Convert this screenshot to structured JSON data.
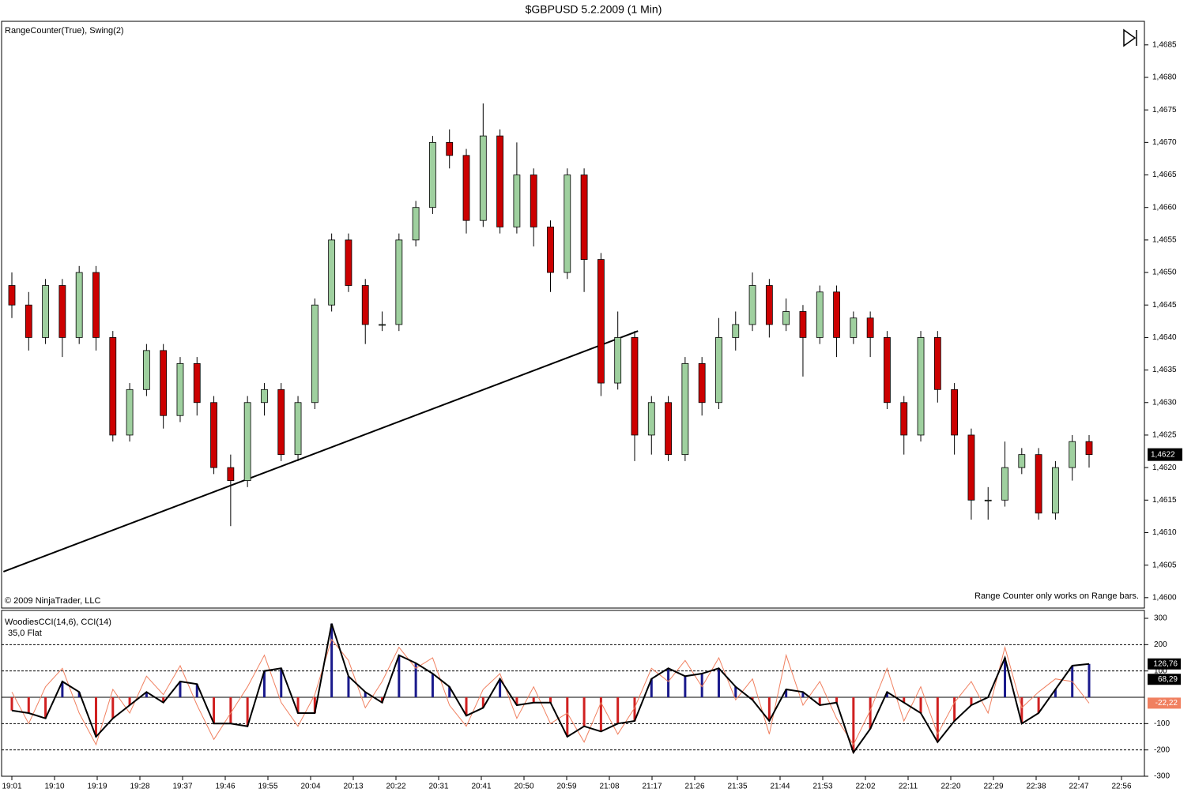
{
  "title": "$GBPUSD  5.2.2009 (1 Min)",
  "time_labels": [
    "19:01",
    "19:10",
    "19:19",
    "19:28",
    "19:37",
    "19:46",
    "19:55",
    "20:04",
    "20:13",
    "20:22",
    "20:31",
    "20:41",
    "20:50",
    "20:59",
    "21:08",
    "21:17",
    "21:26",
    "21:35",
    "21:44",
    "21:53",
    "22:02",
    "22:11",
    "22:20",
    "22:29",
    "22:38",
    "22:47",
    "22:56"
  ],
  "chart_data": [
    {
      "type": "candlestick",
      "title": "RangeCounter(True), Swing(2)",
      "copyright": "© 2009 NinjaTrader, LLC",
      "note": "Range Counter only works on Range bars.",
      "up_color": "#9fd09f",
      "down_color": "#cc0000",
      "ylim": [
        1.45984,
        1.46885
      ],
      "yticks": [
        {
          "value": 1.46,
          "label": "1,4600"
        },
        {
          "value": 1.4605,
          "label": "1,4605"
        },
        {
          "value": 1.461,
          "label": "1,4610"
        },
        {
          "value": 1.4615,
          "label": "1,4615"
        },
        {
          "value": 1.462,
          "label": "1,4620"
        },
        {
          "value": 1.4625,
          "label": "1,4625"
        },
        {
          "value": 1.463,
          "label": "1,4630"
        },
        {
          "value": 1.4635,
          "label": "1,4635"
        },
        {
          "value": 1.464,
          "label": "1,4640"
        },
        {
          "value": 1.4645,
          "label": "1,4645"
        },
        {
          "value": 1.465,
          "label": "1,4650"
        },
        {
          "value": 1.4655,
          "label": "1,4655"
        },
        {
          "value": 1.466,
          "label": "1,4660"
        },
        {
          "value": 1.4665,
          "label": "1,4665"
        },
        {
          "value": 1.467,
          "label": "1,4670"
        },
        {
          "value": 1.4675,
          "label": "1,4675"
        },
        {
          "value": 1.468,
          "label": "1,4680"
        },
        {
          "value": 1.4685,
          "label": "1,4685"
        }
      ],
      "last_price": {
        "value": 1.4622,
        "label": "1,4622"
      },
      "trendline": {
        "x": [
          -0.5,
          37.2
        ],
        "y": [
          1.4604,
          1.4641
        ]
      },
      "candles": [
        [
          1.4648,
          1.465,
          1.4643,
          1.4645
        ],
        [
          1.4645,
          1.4647,
          1.4638,
          1.464
        ],
        [
          1.464,
          1.4649,
          1.4639,
          1.4648
        ],
        [
          1.4648,
          1.4649,
          1.4637,
          1.464
        ],
        [
          1.464,
          1.4651,
          1.4639,
          1.465
        ],
        [
          1.465,
          1.4651,
          1.4638,
          1.464
        ],
        [
          1.464,
          1.4641,
          1.4624,
          1.4625
        ],
        [
          1.4625,
          1.4633,
          1.4624,
          1.4632
        ],
        [
          1.4632,
          1.4639,
          1.4631,
          1.4638
        ],
        [
          1.4638,
          1.4639,
          1.4626,
          1.4628
        ],
        [
          1.4628,
          1.4637,
          1.4627,
          1.4636
        ],
        [
          1.4636,
          1.4637,
          1.4628,
          1.463
        ],
        [
          1.463,
          1.4631,
          1.4619,
          1.462
        ],
        [
          1.462,
          1.4622,
          1.4611,
          1.4618
        ],
        [
          1.4618,
          1.4631,
          1.4617,
          1.463
        ],
        [
          1.463,
          1.4633,
          1.4628,
          1.4632
        ],
        [
          1.4632,
          1.4633,
          1.4621,
          1.4622
        ],
        [
          1.4622,
          1.4631,
          1.4621,
          1.463
        ],
        [
          1.463,
          1.4646,
          1.4629,
          1.4645
        ],
        [
          1.4645,
          1.4656,
          1.4644,
          1.4655
        ],
        [
          1.4655,
          1.4656,
          1.4647,
          1.4648
        ],
        [
          1.4648,
          1.4649,
          1.4639,
          1.4642
        ],
        [
          1.4642,
          1.4644,
          1.4641,
          1.4642
        ],
        [
          1.4642,
          1.4656,
          1.4641,
          1.4655
        ],
        [
          1.4655,
          1.4661,
          1.4654,
          1.466
        ],
        [
          1.466,
          1.4671,
          1.4659,
          1.467
        ],
        [
          1.467,
          1.4672,
          1.4666,
          1.4668
        ],
        [
          1.4668,
          1.4669,
          1.4656,
          1.4658
        ],
        [
          1.4658,
          1.4676,
          1.4657,
          1.4671
        ],
        [
          1.4671,
          1.4672,
          1.4656,
          1.4657
        ],
        [
          1.4657,
          1.467,
          1.4656,
          1.4665
        ],
        [
          1.4665,
          1.4666,
          1.4654,
          1.4657
        ],
        [
          1.4657,
          1.4658,
          1.4647,
          1.465
        ],
        [
          1.465,
          1.4666,
          1.4649,
          1.4665
        ],
        [
          1.4665,
          1.4666,
          1.4647,
          1.4652
        ],
        [
          1.4652,
          1.4653,
          1.4631,
          1.4633
        ],
        [
          1.4633,
          1.4644,
          1.4632,
          1.464
        ],
        [
          1.464,
          1.4641,
          1.4621,
          1.4625
        ],
        [
          1.4625,
          1.4631,
          1.4622,
          1.463
        ],
        [
          1.463,
          1.4631,
          1.4621,
          1.4622
        ],
        [
          1.4622,
          1.4637,
          1.4621,
          1.4636
        ],
        [
          1.4636,
          1.4637,
          1.4628,
          1.463
        ],
        [
          1.463,
          1.4643,
          1.4629,
          1.464
        ],
        [
          1.464,
          1.4644,
          1.4638,
          1.4642
        ],
        [
          1.4642,
          1.465,
          1.4641,
          1.4648
        ],
        [
          1.4648,
          1.4649,
          1.464,
          1.4642
        ],
        [
          1.4642,
          1.4646,
          1.4641,
          1.4644
        ],
        [
          1.4644,
          1.4645,
          1.4634,
          1.464
        ],
        [
          1.464,
          1.4648,
          1.4639,
          1.4647
        ],
        [
          1.4647,
          1.4648,
          1.4637,
          1.464
        ],
        [
          1.464,
          1.4644,
          1.4639,
          1.4643
        ],
        [
          1.4643,
          1.4644,
          1.4637,
          1.464
        ],
        [
          1.464,
          1.4641,
          1.4629,
          1.463
        ],
        [
          1.463,
          1.4631,
          1.4622,
          1.4625
        ],
        [
          1.4625,
          1.4641,
          1.4624,
          1.464
        ],
        [
          1.464,
          1.4641,
          1.463,
          1.4632
        ],
        [
          1.4632,
          1.4633,
          1.4622,
          1.4625
        ],
        [
          1.4625,
          1.4626,
          1.4612,
          1.4615
        ],
        [
          1.4615,
          1.4617,
          1.4612,
          1.4615
        ],
        [
          1.4615,
          1.4624,
          1.4614,
          1.462
        ],
        [
          1.462,
          1.4623,
          1.4619,
          1.4622
        ],
        [
          1.4622,
          1.4623,
          1.4612,
          1.4613
        ],
        [
          1.4613,
          1.4621,
          1.4612,
          1.462
        ],
        [
          1.462,
          1.4625,
          1.4618,
          1.4624
        ],
        [
          1.4624,
          1.4625,
          1.462,
          1.4622
        ]
      ]
    },
    {
      "type": "cci",
      "title": "WoodiesCCI(14,6), CCI(14)",
      "subtitle": "35,0 Flat",
      "ylim": [
        -300,
        330
      ],
      "yticks": [
        300,
        200,
        100,
        -100,
        -200,
        -300
      ],
      "pos_color": "#1a1a8c",
      "neg_color": "#d02020",
      "series": [
        {
          "name": "WoodiesCCI",
          "color": "#000000",
          "values": [
            -50,
            -60,
            -80,
            60,
            20,
            -150,
            -80,
            -30,
            20,
            -20,
            60,
            50,
            -100,
            -100,
            -110,
            100,
            110,
            -60,
            -60,
            280,
            80,
            20,
            -20,
            160,
            130,
            90,
            40,
            -70,
            -40,
            70,
            -30,
            -20,
            -20,
            -150,
            -110,
            -130,
            -100,
            -90,
            70,
            110,
            80,
            90,
            110,
            40,
            -10,
            -90,
            30,
            20,
            -30,
            -20,
            -210,
            -120,
            20,
            -20,
            -60,
            -170,
            -90,
            -30,
            0,
            150,
            -100,
            -60,
            30,
            120,
            126.76
          ]
        },
        {
          "name": "CCI",
          "color": "#f08060",
          "values": [
            20,
            -100,
            40,
            110,
            -60,
            -180,
            30,
            -60,
            80,
            10,
            120,
            -30,
            -160,
            -60,
            40,
            160,
            -20,
            -110,
            10,
            220,
            140,
            -40,
            60,
            190,
            110,
            150,
            -30,
            -110,
            30,
            90,
            -80,
            40,
            -100,
            -60,
            -170,
            -20,
            -140,
            -40,
            110,
            60,
            140,
            40,
            150,
            -10,
            70,
            -140,
            160,
            -30,
            60,
            -80,
            -180,
            -50,
            110,
            -90,
            40,
            -140,
            -20,
            60,
            -60,
            190,
            -40,
            20,
            70,
            60,
            -22.22
          ]
        }
      ],
      "markers": [
        {
          "value": 126.76,
          "label": "126,76",
          "color": "#000000"
        },
        {
          "value": 68.29,
          "label": "68,29",
          "color": "#000000"
        },
        {
          "value": -22.22,
          "label": "-22,22",
          "color": "#f08060"
        }
      ]
    }
  ]
}
